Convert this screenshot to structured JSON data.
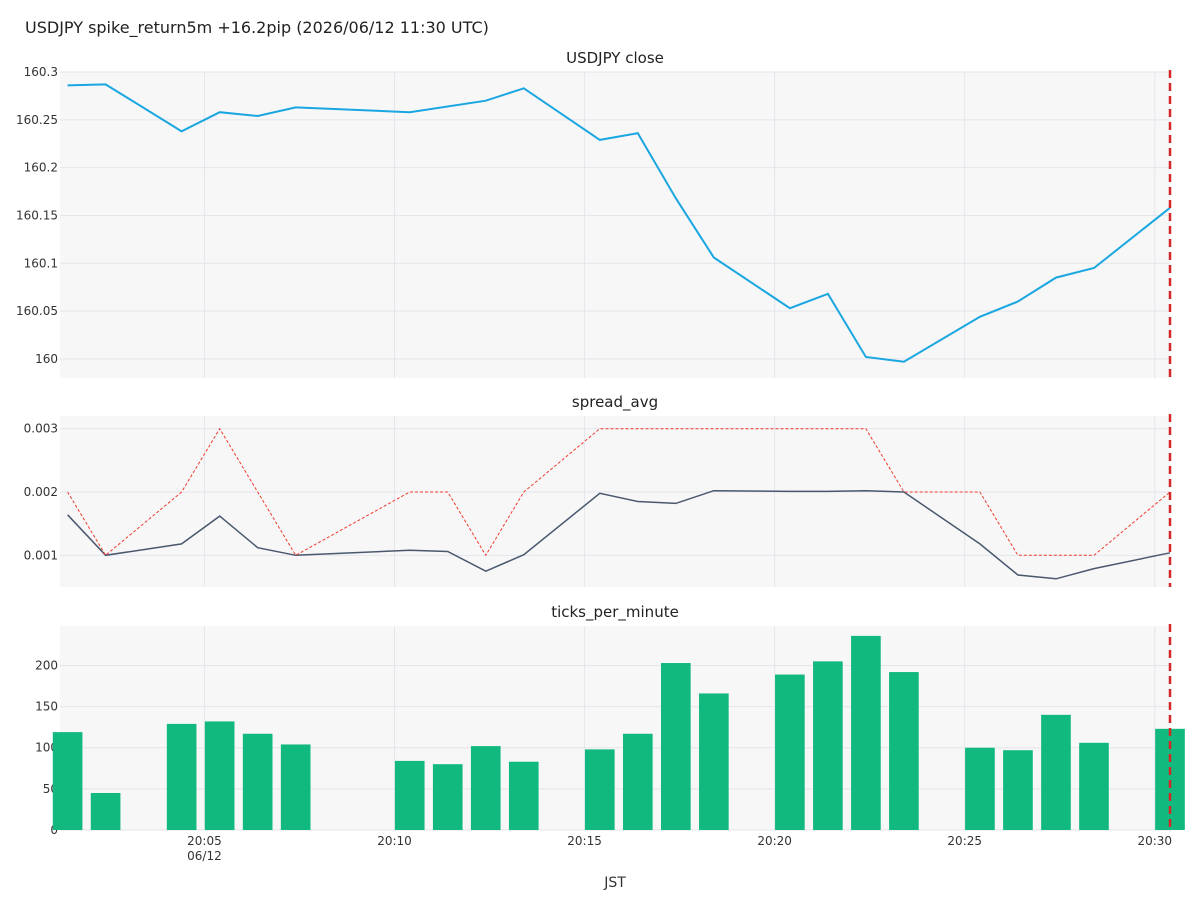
{
  "title": "USDJPY spike_return5m +16.2pip (2026/06/12 11:30 UTC)",
  "colors": {
    "close_line": "#1aa6e0",
    "spread_avg_line": "#4a586e",
    "spread_max_line": "#ef3b2c",
    "ticks_bar": "#12b97e",
    "event_marker": "#d62728",
    "panel_bg": "#f7f7f8",
    "grid": "#e4e6ec"
  },
  "chart_data": [
    {
      "type": "line",
      "title": "USDJPY close",
      "x": [
        "20:01",
        "20:02",
        "20:04",
        "20:05",
        "20:06",
        "20:07",
        "20:10",
        "20:12",
        "20:13",
        "20:15",
        "20:16",
        "20:17",
        "20:18",
        "20:20",
        "20:21",
        "20:22",
        "20:23",
        "20:25",
        "20:26",
        "20:27",
        "20:28",
        "20:30"
      ],
      "series": [
        {
          "values": [
            160.286,
            160.287,
            160.238,
            160.258,
            160.254,
            160.263,
            160.258,
            160.27,
            160.283,
            160.229,
            160.236,
            160.168,
            160.106,
            160.053,
            160.068,
            160.002,
            159.997,
            160.044,
            160.06,
            160.085,
            160.095,
            160.158
          ]
        }
      ],
      "yticks": [
        "160",
        "160.05",
        "160.1",
        "160.15",
        "160.2",
        "160.25",
        "160.3"
      ],
      "ylim": [
        159.98,
        160.3
      ]
    },
    {
      "type": "line",
      "title": "spread_avg",
      "x": [
        "20:01",
        "20:02",
        "20:04",
        "20:05",
        "20:06",
        "20:07",
        "20:10",
        "20:11",
        "20:12",
        "20:13",
        "20:15",
        "20:16",
        "20:17",
        "20:18",
        "20:20",
        "20:21",
        "20:22",
        "20:23",
        "20:25",
        "20:26",
        "20:27",
        "20:28",
        "20:30"
      ],
      "series": [
        {
          "values": [
            0.00164,
            0.001,
            0.00118,
            0.00162,
            0.00112,
            0.001,
            0.00108,
            0.00106,
            0.00075,
            0.00101,
            0.00198,
            0.00185,
            0.00182,
            0.00202,
            0.00201,
            0.00201,
            0.00202,
            0.002,
            0.00118,
            0.00069,
            0.00063,
            0.00079,
            0.00104
          ]
        },
        {
          "values": [
            0.002,
            0.001,
            0.002,
            0.003,
            0.002,
            0.001,
            0.002,
            0.002,
            0.001,
            0.002,
            0.003,
            0.003,
            0.003,
            0.003,
            0.003,
            0.003,
            0.003,
            0.002,
            0.002,
            0.001,
            0.001,
            0.001,
            0.002
          ]
        }
      ],
      "yticks": [
        "0.001",
        "0.002",
        "0.003"
      ],
      "ylim": [
        0.0005,
        0.0032
      ]
    },
    {
      "type": "bar",
      "title": "ticks_per_minute",
      "x": [
        "20:01",
        "20:02",
        "20:04",
        "20:05",
        "20:06",
        "20:07",
        "20:10",
        "20:11",
        "20:12",
        "20:13",
        "20:15",
        "20:16",
        "20:17",
        "20:18",
        "20:20",
        "20:21",
        "20:22",
        "20:23",
        "20:25",
        "20:26",
        "20:27",
        "20:28",
        "20:30"
      ],
      "values": [
        119,
        45,
        129,
        132,
        117,
        104,
        84,
        80,
        102,
        83,
        98,
        117,
        203,
        166,
        189,
        205,
        236,
        192,
        100,
        97,
        140,
        106,
        123
      ],
      "yticks": [
        "0",
        "50",
        "100",
        "150",
        "200"
      ],
      "ylim": [
        0,
        248
      ]
    }
  ],
  "x_axis": {
    "ticks": [
      "20:05",
      "20:10",
      "20:15",
      "20:20",
      "20:25",
      "20:30"
    ],
    "date_label": "06/12",
    "title": "JST"
  },
  "event_time": "20:30"
}
